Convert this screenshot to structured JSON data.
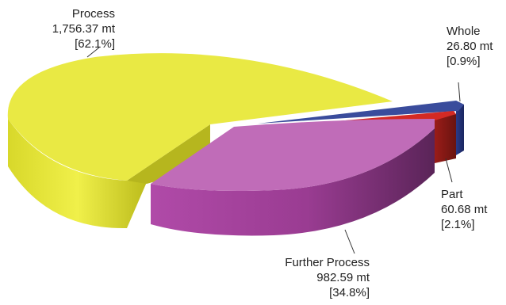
{
  "chart_data": {
    "type": "pie",
    "unit": "mt",
    "slices": [
      {
        "name": "Process",
        "value": 1756.37,
        "value_label": "1,756.37 mt",
        "percent_label": "[62.1%]",
        "color": "#e6e634"
      },
      {
        "name": "Whole",
        "value": 26.8,
        "value_label": "26.80 mt",
        "percent_label": "[0.9%]",
        "color": "#2e3f8f"
      },
      {
        "name": "Part",
        "value": 60.68,
        "value_label": "60.68 mt",
        "percent_label": "[2.1%]",
        "color": "#d42a24"
      },
      {
        "name": "Further Process",
        "value": 982.59,
        "value_label": "982.59 mt",
        "percent_label": "[34.8%]",
        "color": "#b85aae"
      }
    ]
  }
}
